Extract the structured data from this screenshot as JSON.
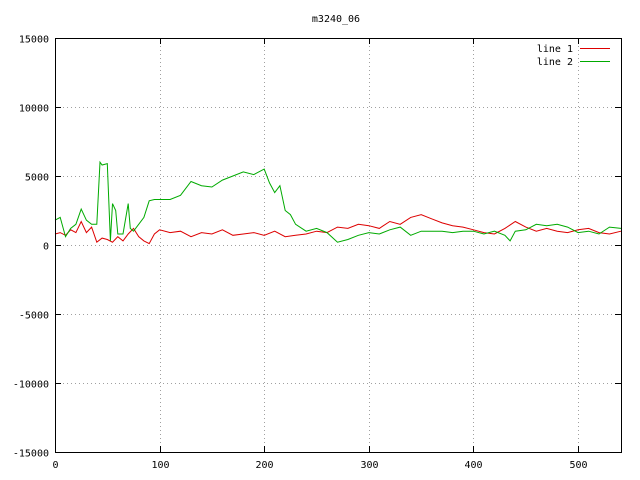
{
  "chart_data": {
    "type": "line",
    "title": "m3240_06",
    "xlabel": "",
    "ylabel": "",
    "xlim": [
      0,
      541
    ],
    "ylim": [
      -15000,
      15000
    ],
    "x_ticks": [
      "0",
      "100",
      "200",
      "300",
      "400",
      "500"
    ],
    "y_ticks": [
      "15000",
      "10000",
      "5000",
      "0",
      "-5000",
      "-10000",
      "-15000"
    ],
    "grid": true,
    "legend_position": "top-right",
    "series": [
      {
        "name": "line 1",
        "color": "#dd0000",
        "x": [
          0,
          5,
          10,
          15,
          20,
          25,
          30,
          35,
          40,
          45,
          50,
          55,
          60,
          65,
          70,
          75,
          80,
          85,
          90,
          95,
          100,
          110,
          120,
          130,
          140,
          150,
          160,
          170,
          180,
          190,
          200,
          210,
          220,
          230,
          240,
          250,
          260,
          270,
          280,
          290,
          300,
          310,
          320,
          330,
          340,
          350,
          360,
          370,
          380,
          390,
          400,
          410,
          420,
          430,
          440,
          450,
          460,
          470,
          480,
          490,
          500,
          510,
          520,
          530,
          541
        ],
        "y": [
          800,
          900,
          700,
          1100,
          900,
          1700,
          900,
          1300,
          200,
          500,
          400,
          200,
          600,
          300,
          800,
          1200,
          600,
          300,
          100,
          800,
          1100,
          900,
          1000,
          600,
          900,
          800,
          1100,
          700,
          800,
          900,
          700,
          1000,
          600,
          700,
          800,
          1000,
          900,
          1300,
          1200,
          1500,
          1400,
          1200,
          1700,
          1500,
          2000,
          2200,
          1900,
          1600,
          1400,
          1300,
          1100,
          900,
          800,
          1200,
          1700,
          1300,
          1000,
          1200,
          1000,
          900,
          1100,
          1200,
          900,
          800,
          1000
        ]
      },
      {
        "name": "line 2",
        "color": "#00aa00",
        "x": [
          0,
          5,
          10,
          15,
          20,
          25,
          30,
          35,
          40,
          43,
          45,
          50,
          53,
          55,
          58,
          60,
          65,
          70,
          72,
          75,
          80,
          85,
          90,
          95,
          100,
          110,
          120,
          130,
          140,
          150,
          160,
          170,
          180,
          190,
          200,
          205,
          210,
          215,
          220,
          225,
          230,
          240,
          250,
          260,
          270,
          280,
          290,
          300,
          310,
          320,
          330,
          340,
          350,
          360,
          370,
          380,
          390,
          400,
          410,
          420,
          430,
          435,
          440,
          450,
          460,
          470,
          480,
          490,
          500,
          510,
          520,
          530,
          541
        ],
        "y": [
          1800,
          2000,
          600,
          1200,
          1500,
          2600,
          1800,
          1500,
          1500,
          6000,
          5800,
          5900,
          300,
          3000,
          2500,
          800,
          800,
          3000,
          1200,
          1000,
          1500,
          2000,
          3200,
          3300,
          3300,
          3300,
          3600,
          4600,
          4300,
          4200,
          4700,
          5000,
          5300,
          5100,
          5500,
          4500,
          3800,
          4300,
          2500,
          2200,
          1500,
          1000,
          1200,
          900,
          200,
          400,
          700,
          900,
          800,
          1100,
          1300,
          700,
          1000,
          1000,
          1000,
          900,
          1000,
          1000,
          800,
          1000,
          700,
          300,
          1000,
          1100,
          1500,
          1400,
          1500,
          1300,
          900,
          1000,
          800,
          1300,
          1200
        ]
      }
    ]
  }
}
